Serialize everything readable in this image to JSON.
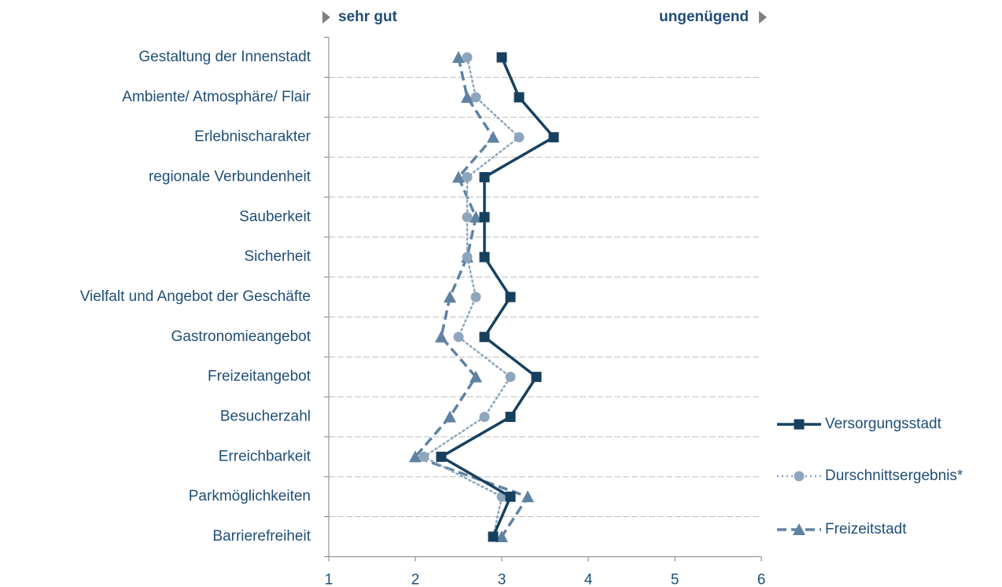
{
  "chart_data": {
    "type": "line",
    "annotations": {
      "left": "sehr gut",
      "right": "ungenügend"
    },
    "categories": [
      "Gestaltung der Innenstadt",
      "Ambiente/ Atmosphäre/ Flair",
      "Erlebnischarakter",
      "regionale Verbundenheit",
      "Sauberkeit",
      "Sicherheit",
      "Vielfalt und Angebot der Geschäfte",
      "Gastronomieangebot",
      "Freizeitangebot",
      "Besucherzahl",
      "Erreichbarkeit",
      "Parkmöglichkeiten",
      "Barrierefreiheit"
    ],
    "series": [
      {
        "name": "Versorgungsstadt",
        "color": "#17405f",
        "marker": "square",
        "dash": "solid",
        "values": [
          3.0,
          3.2,
          3.6,
          2.8,
          2.8,
          2.8,
          3.1,
          2.8,
          3.4,
          3.1,
          2.3,
          3.1,
          2.9
        ]
      },
      {
        "name": "Durschnittsergebnis*",
        "color": "#8ea6bd",
        "marker": "circle",
        "dash": "dotted",
        "values": [
          2.6,
          2.7,
          3.2,
          2.6,
          2.6,
          2.6,
          2.7,
          2.5,
          3.1,
          2.8,
          2.1,
          3.0,
          2.9
        ]
      },
      {
        "name": "Freizeitstadt",
        "color": "#5f82a3",
        "marker": "triangle",
        "dash": "dashed",
        "values": [
          2.5,
          2.6,
          2.9,
          2.5,
          2.7,
          2.6,
          2.4,
          2.3,
          2.7,
          2.4,
          2.0,
          3.3,
          3.0
        ]
      }
    ],
    "xlim": [
      1,
      6
    ],
    "xticks": [
      1,
      2,
      3,
      4,
      5,
      6
    ]
  }
}
